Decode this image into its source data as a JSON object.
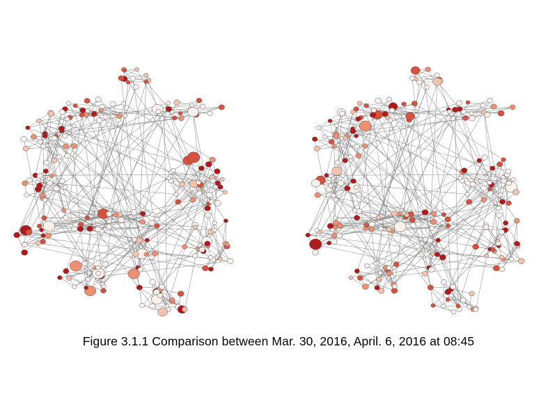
{
  "figure": {
    "caption": "Figure 3.1.1 Comparison between Mar. 30, 2016, April. 6, 2016 at 08:45"
  },
  "panels": [
    {
      "id": "left"
    },
    {
      "id": "right"
    }
  ],
  "colors": {
    "edge": "#7a7a7a",
    "node_outline": "#555555",
    "node_base": "#fbf1ec",
    "node_light": "#f4c3ae",
    "node_medium": "#ec8f72",
    "node_strong": "#d8503e",
    "node_dark": "#b5181a"
  }
}
